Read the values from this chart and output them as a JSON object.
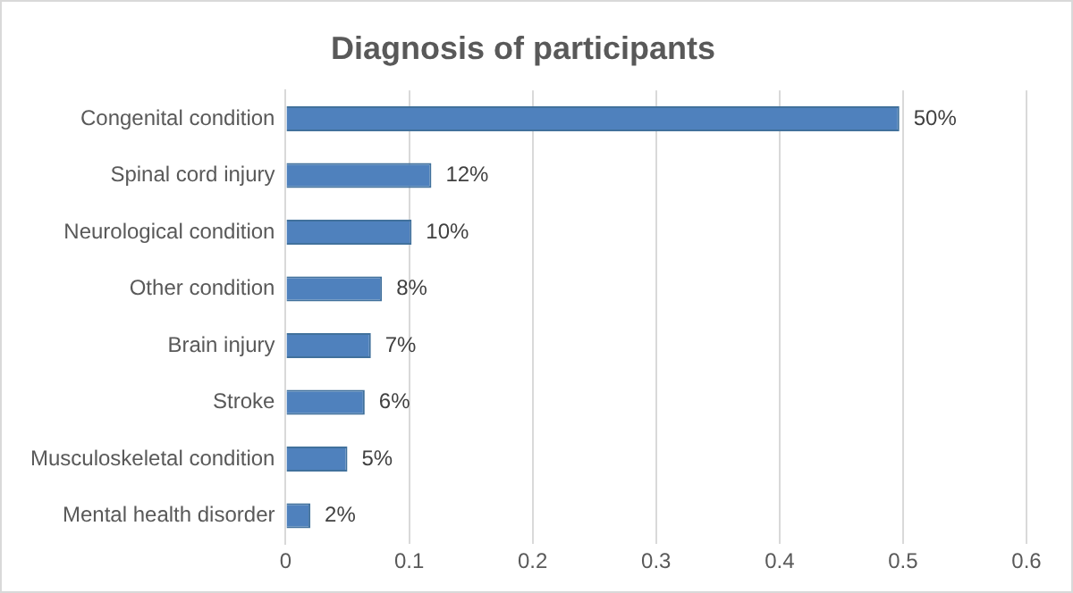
{
  "chart_data": {
    "type": "bar",
    "orientation": "horizontal",
    "title": "Diagnosis of participants",
    "categories": [
      "Congenital condition",
      "Spinal cord injury",
      "Neurological condition",
      "Other condition",
      "Brain injury",
      "Stroke",
      "Musculoskeletal condition",
      "Mental health disorder"
    ],
    "values": [
      0.497,
      0.118,
      0.102,
      0.078,
      0.069,
      0.064,
      0.05,
      0.02
    ],
    "value_labels": [
      "50%",
      "12%",
      "10%",
      "8%",
      "7%",
      "6%",
      "5%",
      "2%"
    ],
    "color": "#4f81bd",
    "xlim": [
      0,
      0.6
    ],
    "xticks": [
      0,
      0.1,
      0.2,
      0.3,
      0.4,
      0.5,
      0.6
    ],
    "grid": "x",
    "legend": false
  }
}
